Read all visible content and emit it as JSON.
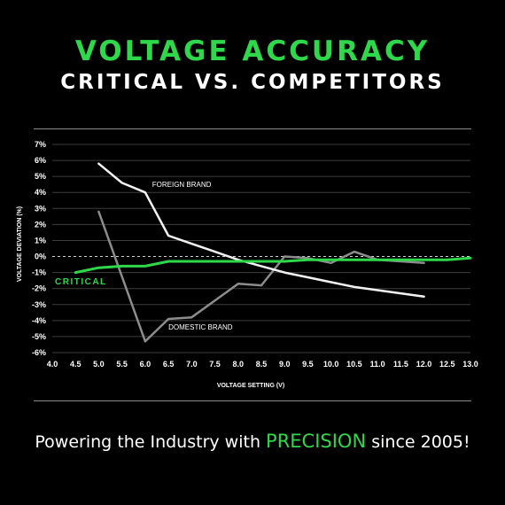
{
  "header": {
    "title": "VOLTAGE ACCURACY",
    "subtitle": "CRITICAL VS. COMPETITORS"
  },
  "footer": {
    "text_before": "Powering the Industry with ",
    "highlight": "PRECISION",
    "text_after": " since 2005!"
  },
  "colors": {
    "accent": "#2fd84a",
    "background": "#000000"
  },
  "chart_data": {
    "type": "line",
    "xlabel": "VOLTAGE SETTING (V)",
    "ylabel": "VOLTAGE DEVIATION (%)",
    "xlim": [
      4.0,
      13.0
    ],
    "ylim": [
      -6,
      7
    ],
    "xticks": [
      "4.0",
      "4.5",
      "5.0",
      "5.5",
      "6.0",
      "6.5",
      "7.0",
      "7.5",
      "8.0",
      "8.5",
      "9.0",
      "9.5",
      "10.0",
      "10.5",
      "11.0",
      "11.5",
      "12.0",
      "12.5",
      "13.0"
    ],
    "yticks": [
      "7%",
      "6%",
      "5%",
      "4%",
      "3%",
      "2%",
      "1%",
      "0%",
      "-1%",
      "-2%",
      "-3%",
      "-4%",
      "-5%",
      "-6%"
    ],
    "grid": "horizontal",
    "series": [
      {
        "name": "FOREIGN BRAND",
        "color": "#f2f2f2",
        "x": [
          5.0,
          5.5,
          6.0,
          6.5,
          7.0,
          7.5,
          8.0,
          8.5,
          9.0,
          9.5,
          10.0,
          10.5,
          11.0,
          11.5,
          12.0
        ],
        "y": [
          5.8,
          4.6,
          4.0,
          1.3,
          0.8,
          0.3,
          -0.2,
          -0.6,
          -1.0,
          -1.3,
          -1.6,
          -1.9,
          -2.1,
          -2.3,
          -2.5
        ]
      },
      {
        "name": "DOMESTIC BRAND",
        "color": "#8c8c8c",
        "x": [
          5.0,
          6.0,
          6.5,
          7.0,
          8.0,
          8.5,
          9.0,
          9.5,
          10.0,
          10.5,
          11.0,
          12.0
        ],
        "y": [
          2.8,
          -5.3,
          -3.9,
          -3.8,
          -1.7,
          -1.8,
          0.0,
          -0.1,
          -0.4,
          0.3,
          -0.2,
          -0.4
        ]
      },
      {
        "name": "CRITICAL",
        "color": "#2fd84a",
        "x": [
          4.5,
          5.0,
          5.5,
          6.0,
          6.5,
          7.0,
          7.5,
          8.0,
          8.5,
          9.0,
          9.5,
          10.0,
          10.5,
          11.0,
          11.5,
          12.0,
          12.5,
          13.0
        ],
        "y": [
          -1.0,
          -0.7,
          -0.6,
          -0.6,
          -0.3,
          -0.3,
          -0.3,
          -0.3,
          -0.3,
          -0.3,
          -0.2,
          -0.2,
          -0.2,
          -0.2,
          -0.2,
          -0.2,
          -0.2,
          -0.1
        ]
      }
    ]
  }
}
